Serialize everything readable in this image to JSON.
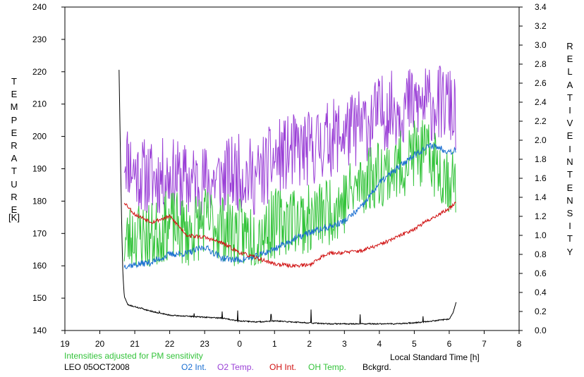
{
  "chart_data": {
    "type": "line",
    "left_axis": {
      "label_letters": [
        "T",
        "E",
        "M",
        "P",
        "E",
        "R",
        "A",
        "T",
        "U",
        "R",
        "E"
      ],
      "unit": "[K]",
      "range": [
        140,
        240
      ],
      "ticks": [
        "140",
        "150",
        "160",
        "170",
        "180",
        "190",
        "200",
        "210",
        "220",
        "230",
        "240"
      ]
    },
    "right_axis": {
      "label_letters_1": [
        "R",
        "E",
        "L",
        "A",
        "T",
        "I",
        "V",
        "E"
      ],
      "label_letters_2": [
        "I",
        "N",
        "T",
        "E",
        "N",
        "S",
        "I",
        "T",
        "Y"
      ],
      "range": [
        0.0,
        3.4
      ],
      "ticks": [
        "0.0",
        "0.2",
        "0.4",
        "0.6",
        "0.8",
        "1.0",
        "1.2",
        "1.4",
        "1.6",
        "1.8",
        "2.0",
        "2.2",
        "2.4",
        "2.6",
        "2.8",
        "3.0",
        "3.2",
        "3.4"
      ]
    },
    "x_axis": {
      "label": "Local Standard Time [h]",
      "range": [
        19,
        32
      ],
      "ticks": [
        "19",
        "20",
        "21",
        "22",
        "23",
        "0",
        "1",
        "2",
        "3",
        "4",
        "5",
        "6",
        "7",
        "8"
      ]
    },
    "note": "Intensities adjusted for PM sensitivity",
    "station": "LEO 05OCT2008",
    "legend": [
      {
        "label": "O2 Int.",
        "color": "#1a6fd1"
      },
      {
        "label": "O2 Temp.",
        "color": "#9a3fd6"
      },
      {
        "label": "OH Int.",
        "color": "#d01010"
      },
      {
        "label": "OH Temp.",
        "color": "#33c33a"
      },
      {
        "label": "Bckgrd.",
        "color": "#000000"
      }
    ],
    "series": [
      {
        "key": "o2temp",
        "name": "O2 Temp.",
        "axis": "left",
        "color": "#9a3fd6",
        "noise": 12,
        "seed": 11,
        "points": [
          [
            20.7,
            195
          ],
          [
            21.0,
            189
          ],
          [
            21.5,
            187
          ],
          [
            22.0,
            188
          ],
          [
            22.5,
            186
          ],
          [
            23.0,
            186
          ],
          [
            23.5,
            187
          ],
          [
            24.0,
            189
          ],
          [
            24.5,
            187
          ],
          [
            25.0,
            193
          ],
          [
            25.5,
            195
          ],
          [
            26.0,
            196
          ],
          [
            26.5,
            199
          ],
          [
            27.0,
            201
          ],
          [
            27.5,
            203
          ],
          [
            28.0,
            207
          ],
          [
            28.5,
            209
          ],
          [
            29.0,
            210
          ],
          [
            29.5,
            210
          ],
          [
            30.0,
            210
          ],
          [
            30.2,
            205
          ]
        ]
      },
      {
        "key": "ohtemp",
        "name": "OH Temp.",
        "axis": "left",
        "color": "#33c33a",
        "noise": 11,
        "seed": 23,
        "points": [
          [
            20.7,
            167
          ],
          [
            21.0,
            170
          ],
          [
            21.5,
            169
          ],
          [
            22.0,
            173
          ],
          [
            22.5,
            170
          ],
          [
            23.0,
            174
          ],
          [
            23.5,
            172
          ],
          [
            24.0,
            170
          ],
          [
            24.5,
            170
          ],
          [
            25.0,
            173
          ],
          [
            25.5,
            175
          ],
          [
            26.0,
            174
          ],
          [
            26.5,
            177
          ],
          [
            27.0,
            180
          ],
          [
            27.5,
            186
          ],
          [
            28.0,
            189
          ],
          [
            28.5,
            190
          ],
          [
            29.0,
            195
          ],
          [
            29.5,
            193
          ],
          [
            30.0,
            187
          ],
          [
            30.2,
            185
          ]
        ]
      },
      {
        "key": "o2int",
        "name": "O2 Int.",
        "axis": "right",
        "color": "#1a6fd1",
        "noise": 0.035,
        "seed": 37,
        "points": [
          [
            20.7,
            0.68
          ],
          [
            21.0,
            0.69
          ],
          [
            21.5,
            0.72
          ],
          [
            22.0,
            0.8
          ],
          [
            22.5,
            0.81
          ],
          [
            23.0,
            0.88
          ],
          [
            23.5,
            0.76
          ],
          [
            24.0,
            0.74
          ],
          [
            24.5,
            0.78
          ],
          [
            25.0,
            0.86
          ],
          [
            25.5,
            0.95
          ],
          [
            26.0,
            1.03
          ],
          [
            26.5,
            1.08
          ],
          [
            27.0,
            1.15
          ],
          [
            27.5,
            1.3
          ],
          [
            28.0,
            1.55
          ],
          [
            28.5,
            1.7
          ],
          [
            29.0,
            1.85
          ],
          [
            29.5,
            1.95
          ],
          [
            30.0,
            1.88
          ],
          [
            30.2,
            1.9
          ]
        ]
      },
      {
        "key": "ohint",
        "name": "OH Int.",
        "axis": "right",
        "color": "#d01010",
        "noise": 0.02,
        "seed": 53,
        "points": [
          [
            20.7,
            1.35
          ],
          [
            21.0,
            1.22
          ],
          [
            21.5,
            1.14
          ],
          [
            22.0,
            1.2
          ],
          [
            22.5,
            1.0
          ],
          [
            23.0,
            0.98
          ],
          [
            23.5,
            0.92
          ],
          [
            24.0,
            0.82
          ],
          [
            24.5,
            0.76
          ],
          [
            25.0,
            0.7
          ],
          [
            25.5,
            0.68
          ],
          [
            26.0,
            0.69
          ],
          [
            26.5,
            0.81
          ],
          [
            27.0,
            0.82
          ],
          [
            27.5,
            0.84
          ],
          [
            28.0,
            0.9
          ],
          [
            28.5,
            0.98
          ],
          [
            29.0,
            1.07
          ],
          [
            29.5,
            1.18
          ],
          [
            30.0,
            1.28
          ],
          [
            30.2,
            1.36
          ]
        ]
      },
      {
        "key": "bck",
        "name": "Bckgrd.",
        "axis": "right",
        "color": "#000000",
        "noise": 0.006,
        "seed": 71,
        "points": [
          [
            20.55,
            2.74
          ],
          [
            20.58,
            2.05
          ],
          [
            20.62,
            1.2
          ],
          [
            20.66,
            0.6
          ],
          [
            20.7,
            0.36
          ],
          [
            20.8,
            0.27
          ],
          [
            21.0,
            0.25
          ],
          [
            21.5,
            0.2
          ],
          [
            22.0,
            0.16
          ],
          [
            22.5,
            0.15
          ],
          [
            23.0,
            0.14
          ],
          [
            23.5,
            0.13
          ],
          [
            24.0,
            0.1
          ],
          [
            24.5,
            0.09
          ],
          [
            25.0,
            0.1
          ],
          [
            25.5,
            0.09
          ],
          [
            26.0,
            0.08
          ],
          [
            26.5,
            0.07
          ],
          [
            27.0,
            0.07
          ],
          [
            27.5,
            0.07
          ],
          [
            28.0,
            0.07
          ],
          [
            28.5,
            0.07
          ],
          [
            29.0,
            0.08
          ],
          [
            29.5,
            0.1
          ],
          [
            30.0,
            0.12
          ],
          [
            30.1,
            0.18
          ],
          [
            30.2,
            0.3
          ]
        ],
        "spikes": [
          [
            21.2,
            0.24
          ],
          [
            21.7,
            0.2
          ],
          [
            22.7,
            0.18
          ],
          [
            23.5,
            0.2
          ],
          [
            23.95,
            0.21
          ],
          [
            24.9,
            0.17
          ],
          [
            26.05,
            0.22
          ],
          [
            27.45,
            0.17
          ],
          [
            29.25,
            0.15
          ]
        ]
      }
    ]
  }
}
